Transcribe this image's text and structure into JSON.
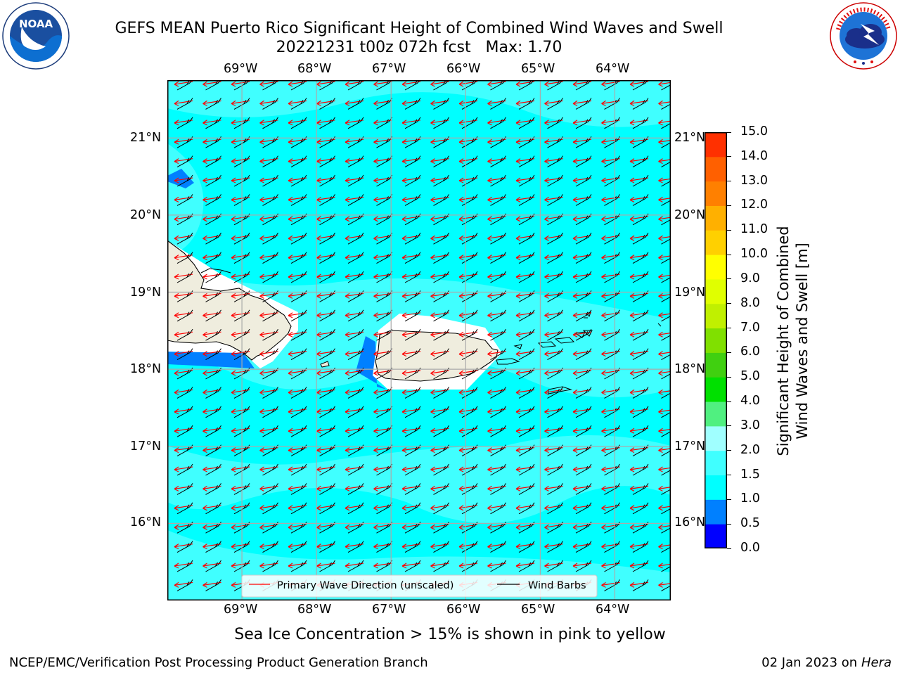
{
  "title": {
    "line1": "GEFS MEAN Puerto Rico Significant Height of Combined Wind Waves and Swell",
    "line2": "20221231 t00z 072h fcst   Max: 1.70"
  },
  "logos": {
    "noaa": {
      "text": "NOAA",
      "ring_text": "NATIONAL OCEANIC AND ATMOSPHERIC ADMINISTRATION · U.S. DEPARTMENT OF COMMERCE"
    },
    "nws": {
      "ring_text": "NATIONAL WEATHER SERVICE"
    }
  },
  "map": {
    "lon_labels": [
      "69°W",
      "68°W",
      "67°W",
      "66°W",
      "65°W",
      "64°W"
    ],
    "lat_labels": [
      "21°N",
      "20°N",
      "19°N",
      "18°N",
      "17°N",
      "16°N"
    ],
    "lon_values": [
      -69,
      -68,
      -67,
      -66,
      -65,
      -64
    ],
    "lat_values": [
      21,
      20,
      19,
      18,
      17,
      16
    ],
    "extent": {
      "lon": [
        -70,
        -63.25
      ],
      "lat": [
        15,
        21.75
      ]
    },
    "ocean_color": "#00ffff",
    "swh_max": 1.7,
    "legend": {
      "wave_label": "Primary Wave Direction (unscaled)",
      "barb_label": "Wind Barbs",
      "wave_color": "#ff0000",
      "barb_color": "#000000"
    },
    "land_color": "#efedde"
  },
  "colorbar": {
    "label_line1": "Significant Height of Combined",
    "label_line2": "Wind Waves and Swell [m]",
    "ticks": [
      "0.0",
      "0.5",
      "1.0",
      "1.5",
      "2.0",
      "3.0",
      "4.0",
      "5.0",
      "6.0",
      "7.0",
      "8.0",
      "9.0",
      "10.0",
      "11.0",
      "12.0",
      "13.0",
      "14.0",
      "15.0"
    ],
    "colors": [
      "#0000ff",
      "#0080ff",
      "#00ffff",
      "#40ffff",
      "#a0ffff",
      "#50f080",
      "#00e000",
      "#40d010",
      "#80e000",
      "#c0f000",
      "#e0ff00",
      "#ffff00",
      "#ffd000",
      "#ffb000",
      "#ff8000",
      "#ff6000",
      "#ff3000"
    ]
  },
  "sea_ice_note": "Sea Ice Concentration > 15% is shown in pink to yellow",
  "footer": {
    "left": "NCEP/EMC/Verification Post Processing Product Generation Branch",
    "right_date": "02 Jan 2023 on ",
    "right_host": "Hera"
  }
}
